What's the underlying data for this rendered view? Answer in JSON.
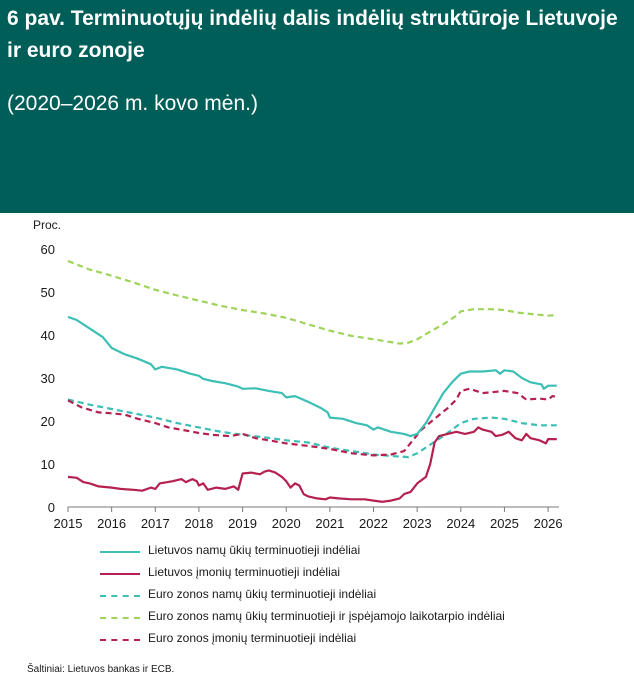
{
  "header": {
    "title": "6 pav. Terminuotųjų indėlių dalis indėlių struktūroje Lietuvoje ir euro zonoje",
    "subtitle": "(2020–2026 m. kovo mėn.)"
  },
  "source": "Šaltiniai: Lietuvos bankas ir ECB.",
  "chart_data": {
    "type": "line",
    "ylabel": "Proc.",
    "ylim": [
      0,
      60
    ],
    "yticks": [
      0,
      10,
      20,
      30,
      40,
      50,
      60
    ],
    "xlim": [
      2015,
      2026.25
    ],
    "xticks": [
      "2015",
      "2016",
      "2017",
      "2018",
      "2019",
      "2020",
      "2021",
      "2022",
      "2023",
      "2024",
      "2025",
      "2026"
    ],
    "grid": false,
    "legend_position": "bottom",
    "series": [
      {
        "name": "Lietuvos namų ūkių terminuotieji indėliai",
        "color": "#3cbfb4",
        "style": "solid",
        "points": [
          [
            2015.0,
            44.2
          ],
          [
            2015.2,
            43.5
          ],
          [
            2015.5,
            41.5
          ],
          [
            2015.8,
            39.5
          ],
          [
            2016.0,
            37.0
          ],
          [
            2016.1,
            36.5
          ],
          [
            2016.3,
            35.5
          ],
          [
            2016.6,
            34.5
          ],
          [
            2016.9,
            33.2
          ],
          [
            2017.0,
            32.0
          ],
          [
            2017.15,
            32.6
          ],
          [
            2017.5,
            32.0
          ],
          [
            2017.8,
            31.0
          ],
          [
            2018.0,
            30.5
          ],
          [
            2018.1,
            29.8
          ],
          [
            2018.3,
            29.3
          ],
          [
            2018.6,
            28.8
          ],
          [
            2018.9,
            28.0
          ],
          [
            2019.0,
            27.5
          ],
          [
            2019.3,
            27.6
          ],
          [
            2019.6,
            27.0
          ],
          [
            2019.9,
            26.5
          ],
          [
            2020.0,
            25.5
          ],
          [
            2020.2,
            25.8
          ],
          [
            2020.5,
            24.5
          ],
          [
            2020.8,
            23.0
          ],
          [
            2020.95,
            22.0
          ],
          [
            2021.0,
            20.8
          ],
          [
            2021.3,
            20.5
          ],
          [
            2021.6,
            19.5
          ],
          [
            2021.85,
            19.0
          ],
          [
            2022.0,
            18.0
          ],
          [
            2022.1,
            18.5
          ],
          [
            2022.4,
            17.5
          ],
          [
            2022.7,
            17.0
          ],
          [
            2022.85,
            16.5
          ],
          [
            2023.0,
            17.0
          ],
          [
            2023.2,
            19.5
          ],
          [
            2023.4,
            23.0
          ],
          [
            2023.6,
            26.5
          ],
          [
            2023.8,
            29.0
          ],
          [
            2023.95,
            30.5
          ],
          [
            2024.0,
            31.0
          ],
          [
            2024.2,
            31.5
          ],
          [
            2024.5,
            31.5
          ],
          [
            2024.8,
            31.8
          ],
          [
            2024.9,
            31.0
          ],
          [
            2025.0,
            31.8
          ],
          [
            2025.2,
            31.5
          ],
          [
            2025.4,
            30.0
          ],
          [
            2025.6,
            29.0
          ],
          [
            2025.85,
            28.5
          ],
          [
            2025.9,
            27.5
          ],
          [
            2026.0,
            28.2
          ],
          [
            2026.2,
            28.2
          ]
        ]
      },
      {
        "name": "Lietuvos įmonių terminuotieji indėliai",
        "color": "#b5214f",
        "style": "solid",
        "points": [
          [
            2015.0,
            7.0
          ],
          [
            2015.2,
            6.8
          ],
          [
            2015.35,
            5.8
          ],
          [
            2015.5,
            5.5
          ],
          [
            2015.7,
            4.8
          ],
          [
            2016.0,
            4.5
          ],
          [
            2016.2,
            4.2
          ],
          [
            2016.5,
            4.0
          ],
          [
            2016.7,
            3.8
          ],
          [
            2016.9,
            4.5
          ],
          [
            2017.0,
            4.2
          ],
          [
            2017.1,
            5.5
          ],
          [
            2017.4,
            6.0
          ],
          [
            2017.6,
            6.5
          ],
          [
            2017.7,
            5.8
          ],
          [
            2017.85,
            6.5
          ],
          [
            2017.95,
            6.0
          ],
          [
            2018.0,
            5.0
          ],
          [
            2018.1,
            5.5
          ],
          [
            2018.2,
            4.0
          ],
          [
            2018.4,
            4.5
          ],
          [
            2018.6,
            4.2
          ],
          [
            2018.8,
            4.8
          ],
          [
            2018.9,
            4.0
          ],
          [
            2019.0,
            7.8
          ],
          [
            2019.2,
            8.0
          ],
          [
            2019.4,
            7.6
          ],
          [
            2019.5,
            8.2
          ],
          [
            2019.6,
            8.5
          ],
          [
            2019.75,
            8.0
          ],
          [
            2019.9,
            7.0
          ],
          [
            2020.0,
            6.0
          ],
          [
            2020.1,
            4.5
          ],
          [
            2020.2,
            5.5
          ],
          [
            2020.3,
            5.0
          ],
          [
            2020.4,
            3.0
          ],
          [
            2020.5,
            2.5
          ],
          [
            2020.7,
            2.0
          ],
          [
            2020.9,
            1.8
          ],
          [
            2021.0,
            2.2
          ],
          [
            2021.2,
            2.0
          ],
          [
            2021.5,
            1.8
          ],
          [
            2021.8,
            1.8
          ],
          [
            2022.0,
            1.5
          ],
          [
            2022.2,
            1.2
          ],
          [
            2022.4,
            1.5
          ],
          [
            2022.6,
            2.0
          ],
          [
            2022.7,
            3.0
          ],
          [
            2022.85,
            3.5
          ],
          [
            2023.0,
            5.5
          ],
          [
            2023.2,
            7.0
          ],
          [
            2023.3,
            10.0
          ],
          [
            2023.4,
            15.0
          ],
          [
            2023.5,
            16.5
          ],
          [
            2023.7,
            17.0
          ],
          [
            2023.9,
            17.5
          ],
          [
            2024.1,
            17.0
          ],
          [
            2024.3,
            17.5
          ],
          [
            2024.4,
            18.5
          ],
          [
            2024.5,
            18.0
          ],
          [
            2024.7,
            17.5
          ],
          [
            2024.8,
            16.5
          ],
          [
            2024.95,
            16.8
          ],
          [
            2025.1,
            17.5
          ],
          [
            2025.25,
            16.0
          ],
          [
            2025.4,
            15.5
          ],
          [
            2025.5,
            17.0
          ],
          [
            2025.6,
            16.0
          ],
          [
            2025.8,
            15.5
          ],
          [
            2025.95,
            14.8
          ],
          [
            2026.0,
            15.8
          ],
          [
            2026.2,
            15.8
          ]
        ]
      },
      {
        "name": "Euro zonos namų ūkių terminuotieji indėliai",
        "color": "#3cbfb4",
        "style": "dashed",
        "points": [
          [
            2015.0,
            25.0
          ],
          [
            2015.5,
            23.8
          ],
          [
            2016.0,
            22.8
          ],
          [
            2016.5,
            21.8
          ],
          [
            2017.0,
            20.8
          ],
          [
            2017.5,
            19.5
          ],
          [
            2018.0,
            18.5
          ],
          [
            2018.5,
            17.5
          ],
          [
            2019.0,
            16.8
          ],
          [
            2019.5,
            16.2
          ],
          [
            2020.0,
            15.5
          ],
          [
            2020.5,
            15.0
          ],
          [
            2021.0,
            13.8
          ],
          [
            2021.5,
            13.0
          ],
          [
            2022.0,
            12.2
          ],
          [
            2022.5,
            11.8
          ],
          [
            2022.8,
            11.6
          ],
          [
            2023.0,
            12.5
          ],
          [
            2023.3,
            14.5
          ],
          [
            2023.6,
            16.5
          ],
          [
            2024.0,
            19.5
          ],
          [
            2024.3,
            20.5
          ],
          [
            2024.7,
            20.8
          ],
          [
            2025.0,
            20.5
          ],
          [
            2025.4,
            19.5
          ],
          [
            2025.8,
            19.0
          ],
          [
            2026.2,
            19.0
          ]
        ]
      },
      {
        "name": "Euro zonos namų ūkių terminuotieji ir įspėjamojo laikotarpio indėliai",
        "color": "#9fd45a",
        "style": "dashed",
        "points": [
          [
            2015.0,
            57.2
          ],
          [
            2015.5,
            55.2
          ],
          [
            2016.0,
            53.8
          ],
          [
            2016.5,
            52.2
          ],
          [
            2017.0,
            50.5
          ],
          [
            2017.5,
            49.2
          ],
          [
            2018.0,
            48.0
          ],
          [
            2018.5,
            46.8
          ],
          [
            2019.0,
            45.8
          ],
          [
            2019.5,
            45.0
          ],
          [
            2020.0,
            44.0
          ],
          [
            2020.5,
            42.5
          ],
          [
            2021.0,
            41.0
          ],
          [
            2021.5,
            39.8
          ],
          [
            2022.0,
            39.0
          ],
          [
            2022.3,
            38.5
          ],
          [
            2022.6,
            38.0
          ],
          [
            2022.8,
            38.2
          ],
          [
            2023.0,
            39.0
          ],
          [
            2023.3,
            40.8
          ],
          [
            2023.6,
            42.5
          ],
          [
            2023.9,
            44.5
          ],
          [
            2024.0,
            45.5
          ],
          [
            2024.3,
            46.0
          ],
          [
            2024.7,
            46.0
          ],
          [
            2025.0,
            45.8
          ],
          [
            2025.3,
            45.2
          ],
          [
            2025.7,
            44.8
          ],
          [
            2026.0,
            44.5
          ],
          [
            2026.2,
            44.6
          ]
        ]
      },
      {
        "name": "Euro zonos įmonių terminuotieji indėliai",
        "color": "#b5214f",
        "style": "dashed",
        "points": [
          [
            2015.0,
            24.8
          ],
          [
            2015.3,
            23.2
          ],
          [
            2015.7,
            22.0
          ],
          [
            2016.0,
            21.8
          ],
          [
            2016.3,
            21.5
          ],
          [
            2016.6,
            20.5
          ],
          [
            2017.0,
            19.5
          ],
          [
            2017.3,
            18.5
          ],
          [
            2017.7,
            17.8
          ],
          [
            2018.0,
            17.2
          ],
          [
            2018.3,
            16.8
          ],
          [
            2018.7,
            16.5
          ],
          [
            2019.0,
            17.0
          ],
          [
            2019.3,
            16.0
          ],
          [
            2019.6,
            15.5
          ],
          [
            2020.0,
            14.8
          ],
          [
            2020.5,
            14.2
          ],
          [
            2021.0,
            13.5
          ],
          [
            2021.5,
            12.5
          ],
          [
            2022.0,
            12.0
          ],
          [
            2022.4,
            12.2
          ],
          [
            2022.7,
            13.0
          ],
          [
            2022.9,
            15.5
          ],
          [
            2023.1,
            18.0
          ],
          [
            2023.4,
            20.5
          ],
          [
            2023.7,
            23.0
          ],
          [
            2023.9,
            25.0
          ],
          [
            2024.0,
            27.0
          ],
          [
            2024.2,
            27.5
          ],
          [
            2024.5,
            26.5
          ],
          [
            2024.8,
            26.8
          ],
          [
            2025.0,
            27.0
          ],
          [
            2025.3,
            26.5
          ],
          [
            2025.5,
            25.0
          ],
          [
            2025.8,
            25.2
          ],
          [
            2026.0,
            25.0
          ],
          [
            2026.1,
            25.8
          ],
          [
            2026.2,
            25.6
          ]
        ]
      }
    ]
  }
}
